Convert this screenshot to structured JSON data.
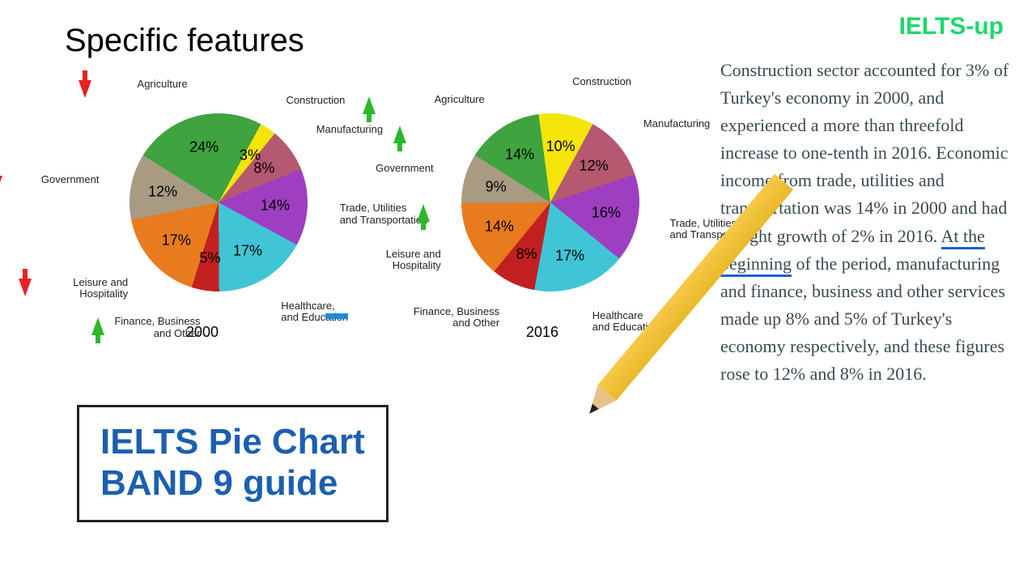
{
  "title": "Specific features",
  "brand": "IELTS-up",
  "titleBox": {
    "line1": "IELTS Pie Chart",
    "line2": "BAND 9 guide",
    "color": "#1c5fb0",
    "fontsize": 44
  },
  "colors": {
    "agriculture": "#3fa33f",
    "construction": "#f4e409",
    "manufacturing": "#b4596f",
    "trade": "#9d3fc0",
    "healthcare": "#3fc5d6",
    "finance": "#c22020",
    "leisure": "#e87b1e",
    "government": "#a89b82"
  },
  "arrowColors": {
    "up": "#2bb82b",
    "down": "#e82020",
    "same": "#1f8ad6"
  },
  "charts": [
    {
      "year": "2000",
      "segments": [
        {
          "name": "Agriculture",
          "value": 24,
          "color": "#3fa33f",
          "trend": "down"
        },
        {
          "name": "Construction",
          "value": 3,
          "color": "#f4e409",
          "trend": "up"
        },
        {
          "name": "Manufacturing",
          "value": 8,
          "color": "#b4596f",
          "trend": "up"
        },
        {
          "name": "Trade, Utilities\nand Transportation",
          "value": 14,
          "color": "#9d3fc0",
          "trend": "up"
        },
        {
          "name": "Healthcare,\nand Education",
          "value": 17,
          "color": "#3fc5d6",
          "trend": "same"
        },
        {
          "name": "Finance, Business\nand Other",
          "value": 5,
          "color": "#c22020",
          "trend": "up"
        },
        {
          "name": "Leisure and\nHospitality",
          "value": 17,
          "color": "#e87b1e",
          "trend": "down"
        },
        {
          "name": "Government",
          "value": 12,
          "color": "#a89b82",
          "trend": "down"
        }
      ]
    },
    {
      "year": "2016",
      "segments": [
        {
          "name": "Agriculture",
          "value": 14,
          "color": "#3fa33f"
        },
        {
          "name": "Construction",
          "value": 10,
          "color": "#f4e409"
        },
        {
          "name": "Manufacturing",
          "value": 12,
          "color": "#b4596f"
        },
        {
          "name": "Trade, Utilities\nand Transportation",
          "value": 16,
          "color": "#9d3fc0"
        },
        {
          "name": "Healthcare\nand Education",
          "value": 17,
          "color": "#3fc5d6"
        },
        {
          "name": "Finance, Business\nand Other",
          "value": 8,
          "color": "#c22020"
        },
        {
          "name": "Leisure and\nHospitality",
          "value": 14,
          "color": "#e87b1e"
        },
        {
          "name": "Government",
          "value": 9,
          "color": "#a89b82"
        }
      ]
    }
  ],
  "paragraph": {
    "pre": "Construction sector accounted for 3% of Turkey's economy in 2000, and experienced a more than threefold increase to one-tenth in 2016. Economic income from trade, utilities and transportation was 14% in 2000 and had a slight growth of 2% in 2016. ",
    "under": "At the beginning",
    "post": " of the period, manufacturing and finance, business and other services made up 8% and 5% of Turkey's economy respectively, and these figures rose to 12% and 8% in 2016.",
    "fontsize": 22,
    "color": "#3a4a52",
    "underlineColor": "#1b5fd6"
  }
}
